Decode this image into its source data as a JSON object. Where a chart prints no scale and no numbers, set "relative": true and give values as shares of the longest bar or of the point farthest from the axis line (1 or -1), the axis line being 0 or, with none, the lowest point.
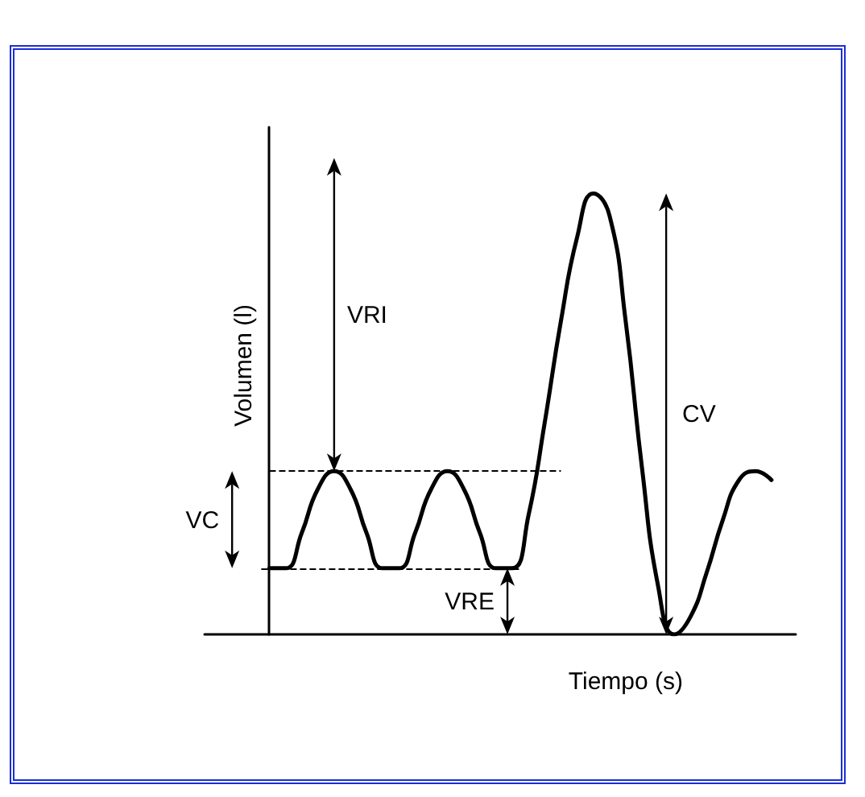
{
  "chart_data": {
    "type": "line",
    "relative": true,
    "xlabel": "Tiempo (s)",
    "ylabel": "Volumen (l)",
    "color": "#000000",
    "categories": [
      null,
      null,
      null,
      null,
      null,
      null,
      null,
      null,
      null,
      null,
      null,
      null,
      null,
      null,
      null,
      null,
      null,
      null,
      null,
      null,
      null,
      null,
      null,
      null,
      null,
      null,
      null,
      null,
      null,
      null,
      null,
      null
    ],
    "values": [
      0.15,
      0.15,
      0.23,
      0.33,
      0.37,
      0.33,
      0.23,
      0.15,
      0.15,
      0.23,
      0.33,
      0.37,
      0.33,
      0.23,
      0.15,
      0.15,
      0.27,
      0.48,
      0.71,
      0.9,
      1.0,
      0.95,
      0.71,
      0.38,
      0.11,
      0,
      0.04,
      0.14,
      0.26,
      0.35,
      0.37,
      0.35
    ],
    "ref_lines": [
      {
        "axis": "y",
        "value": 0.37,
        "line_style": "dashed"
      },
      {
        "axis": "y",
        "value": 0.15,
        "line_style": "dashed"
      }
    ],
    "annotations": [
      "VRI",
      "VC",
      "VRE",
      "CV"
    ],
    "marker": "none",
    "grid": false
  }
}
